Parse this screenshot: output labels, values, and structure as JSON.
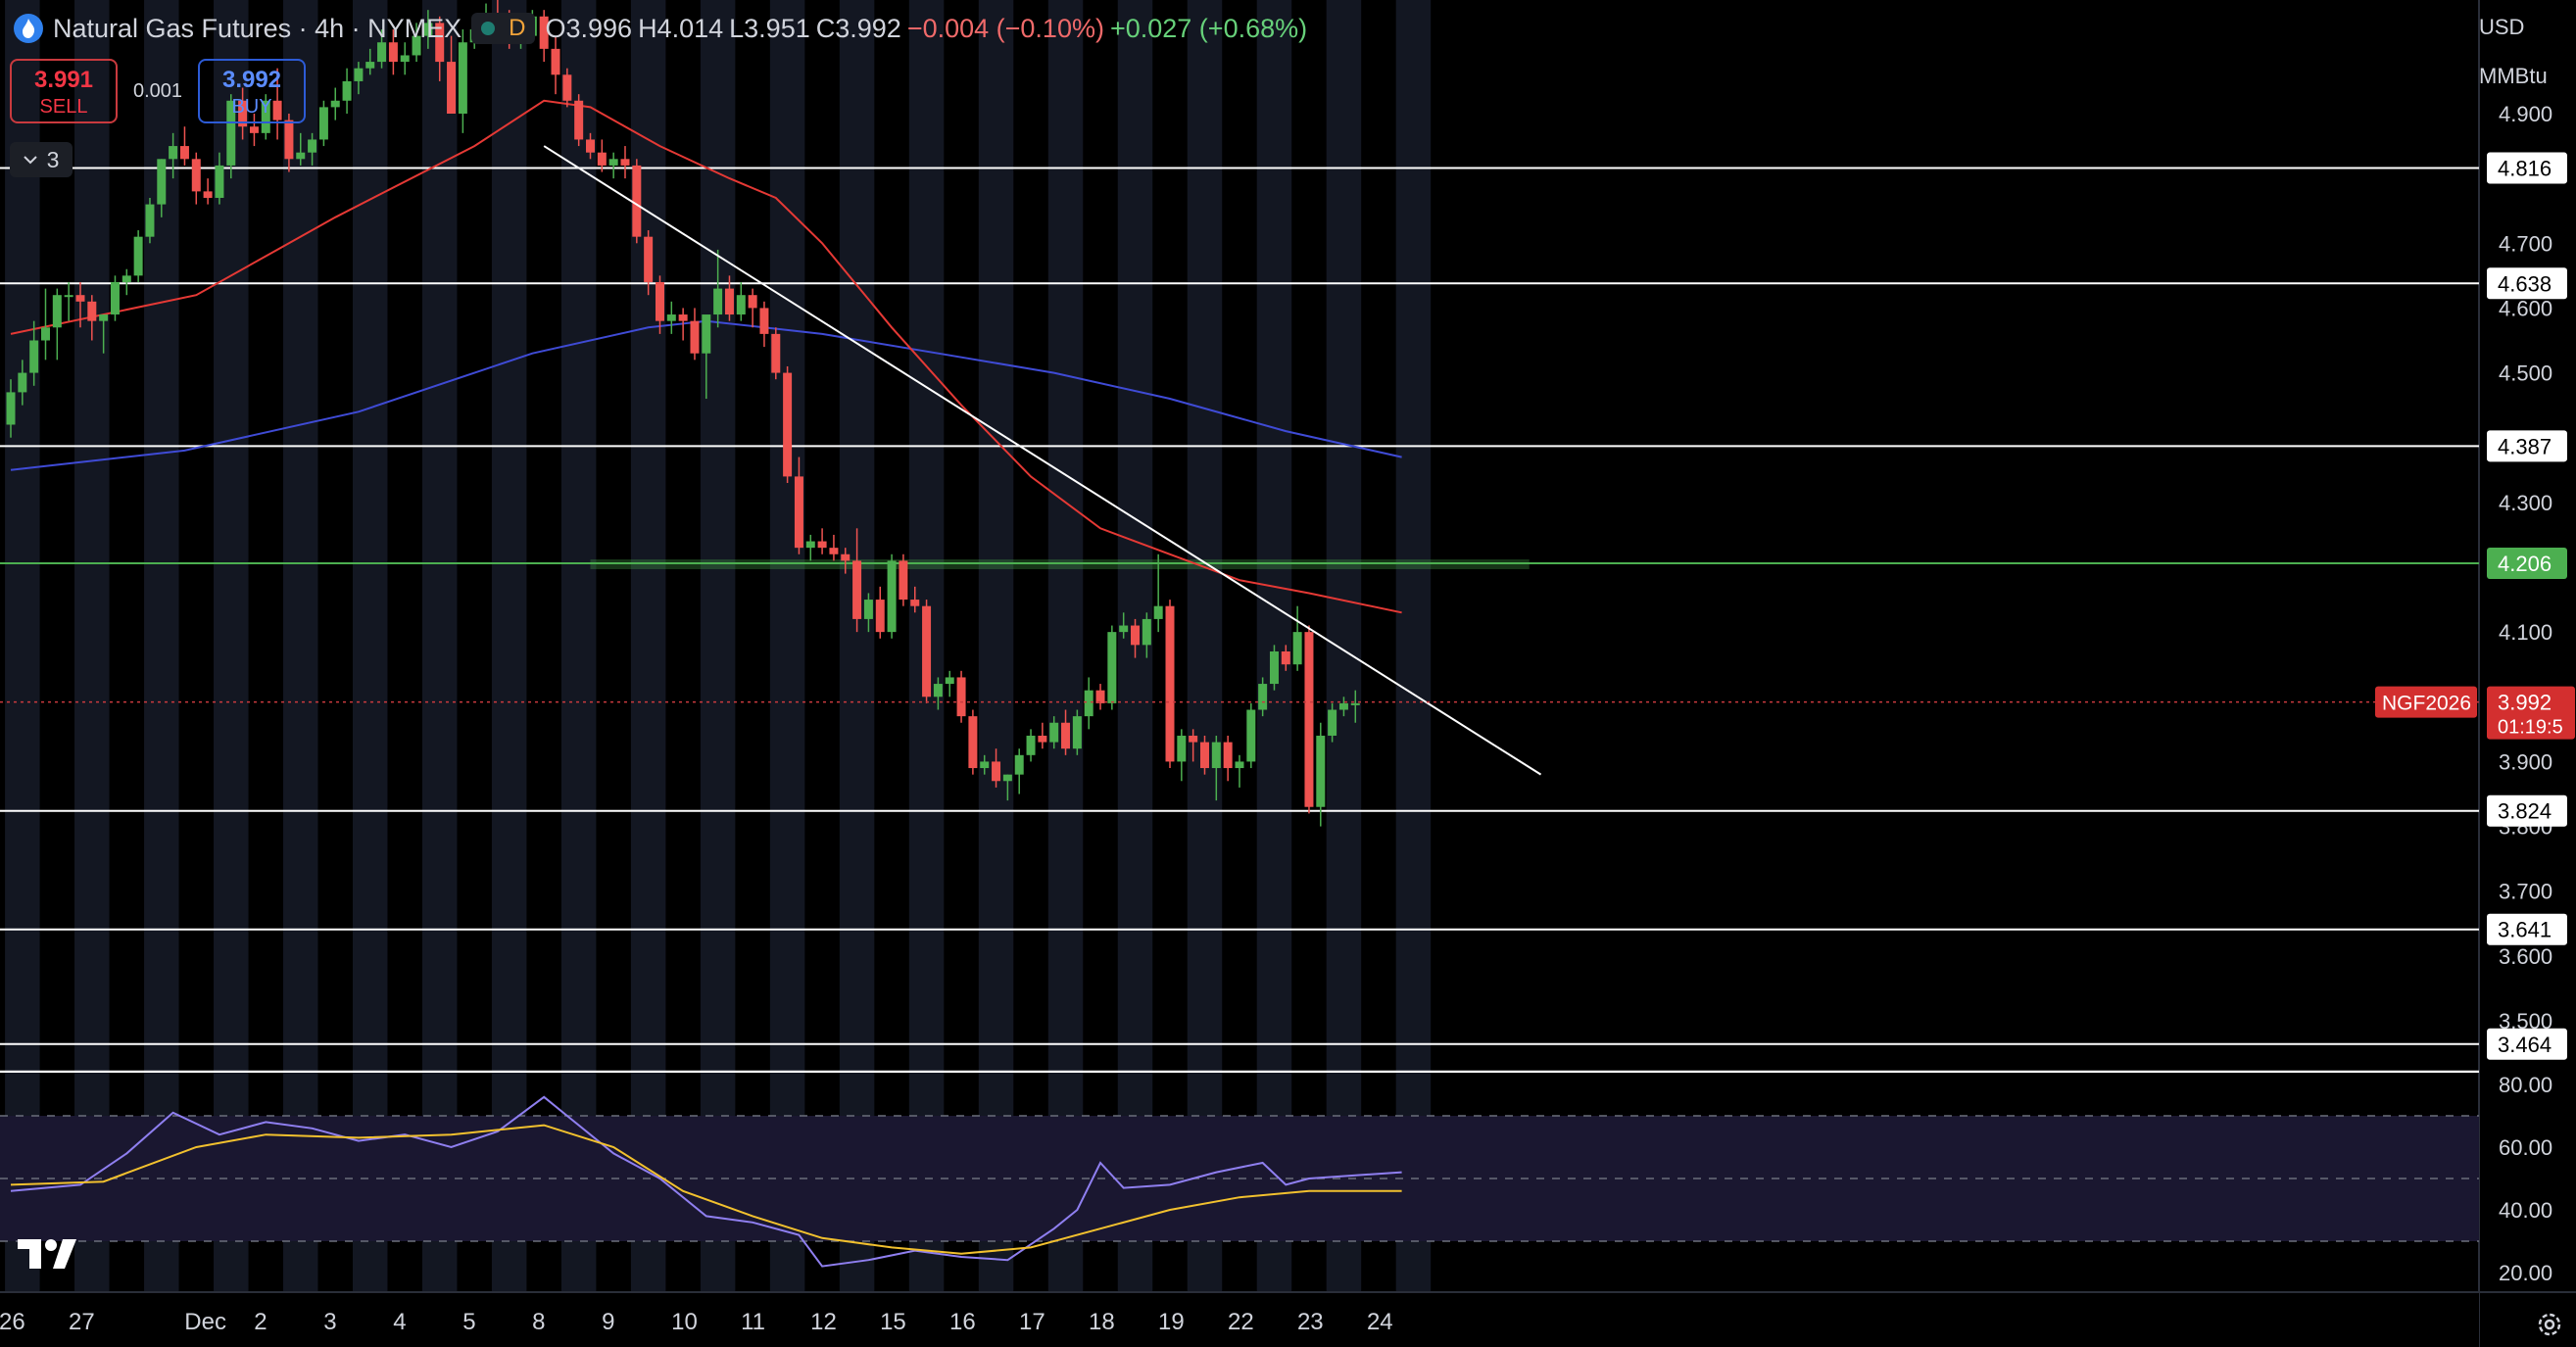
{
  "header": {
    "title": "Natural Gas Futures · 4h · NYMEX",
    "session_letter": "D",
    "open": "O3.996",
    "high": "H4.014",
    "low": "L3.951",
    "close": "C3.992",
    "change": "−0.004 (−0.10%)",
    "secondary_change": "+0.027 (+0.68%)"
  },
  "trade": {
    "sell_price": "3.991",
    "sell_label": "SELL",
    "buy_price": "3.992",
    "buy_label": "BUY",
    "spread": "0.001"
  },
  "indicator_toggle": {
    "count": "3"
  },
  "units": {
    "currency": "USD",
    "unit": "MMBtu"
  },
  "last_price": {
    "symbol": "NGF2026",
    "price": "3.992",
    "countdown": "01:19:5"
  },
  "colors": {
    "up": "#4caf50",
    "down": "#ef5350",
    "ma_fast": "#e53935",
    "ma_slow": "#3f4bd6",
    "rsi": "#8f7ff0",
    "rsi_ma": "#f2c12e",
    "support_green": "#4caf50"
  },
  "icons": [
    "natural-gas-flame-icon",
    "tradingview-logo-icon",
    "settings-gear-icon",
    "chevron-down-icon"
  ],
  "chart_data": [
    {
      "type": "candlestick",
      "price_axis": {
        "ylim": [
          3.4,
          4.95
        ],
        "ticks": [
          "4.900",
          "4.800",
          "4.700",
          "4.600",
          "4.500",
          "4.400",
          "4.300",
          "4.200",
          "4.100",
          "4.000",
          "3.900",
          "3.800",
          "3.700",
          "3.600",
          "3.500"
        ],
        "labels_visible": [
          4.9,
          4.7,
          4.6,
          4.5,
          4.3,
          4.1,
          3.9,
          3.8,
          3.7,
          3.6,
          3.5
        ]
      },
      "date_ticks": [
        {
          "i": 0,
          "label": "26"
        },
        {
          "i": 6,
          "label": "27"
        },
        {
          "i": 16,
          "label": "Dec"
        },
        {
          "i": 22,
          "label": "2"
        },
        {
          "i": 28,
          "label": "3"
        },
        {
          "i": 34,
          "label": "4"
        },
        {
          "i": 40,
          "label": "5"
        },
        {
          "i": 46,
          "label": "8"
        },
        {
          "i": 52,
          "label": "9"
        },
        {
          "i": 58,
          "label": "10"
        },
        {
          "i": 64,
          "label": "11"
        },
        {
          "i": 70,
          "label": "12"
        },
        {
          "i": 76,
          "label": "15"
        },
        {
          "i": 82,
          "label": "16"
        },
        {
          "i": 88,
          "label": "17"
        },
        {
          "i": 94,
          "label": "18"
        },
        {
          "i": 100,
          "label": "19"
        },
        {
          "i": 106,
          "label": "22"
        },
        {
          "i": 112,
          "label": "23"
        },
        {
          "i": 118,
          "label": "24"
        }
      ],
      "candles": [
        [
          4.42,
          4.49,
          4.4,
          4.47
        ],
        [
          4.47,
          4.52,
          4.45,
          4.5
        ],
        [
          4.5,
          4.58,
          4.48,
          4.55
        ],
        [
          4.55,
          4.63,
          4.52,
          4.57
        ],
        [
          4.57,
          4.63,
          4.52,
          4.62
        ],
        [
          4.62,
          4.64,
          4.58,
          4.62
        ],
        [
          4.62,
          4.64,
          4.57,
          4.61
        ],
        [
          4.61,
          4.62,
          4.55,
          4.58
        ],
        [
          4.58,
          4.59,
          4.53,
          4.59
        ],
        [
          4.59,
          4.65,
          4.58,
          4.64
        ],
        [
          4.64,
          4.66,
          4.62,
          4.65
        ],
        [
          4.65,
          4.72,
          4.64,
          4.71
        ],
        [
          4.71,
          4.77,
          4.7,
          4.76
        ],
        [
          4.76,
          4.83,
          4.74,
          4.83
        ],
        [
          4.83,
          4.87,
          4.8,
          4.85
        ],
        [
          4.85,
          4.88,
          4.82,
          4.83
        ],
        [
          4.83,
          4.84,
          4.76,
          4.78
        ],
        [
          4.78,
          4.8,
          4.76,
          4.77
        ],
        [
          4.77,
          4.84,
          4.76,
          4.82
        ],
        [
          4.82,
          4.93,
          4.8,
          4.92
        ],
        [
          4.92,
          4.94,
          4.86,
          4.88
        ],
        [
          4.88,
          4.9,
          4.85,
          4.87
        ],
        [
          4.87,
          4.93,
          4.86,
          4.92
        ],
        [
          4.92,
          4.97,
          4.86,
          4.89
        ],
        [
          4.89,
          4.9,
          4.81,
          4.83
        ],
        [
          4.83,
          4.87,
          4.82,
          4.84
        ],
        [
          4.84,
          4.87,
          4.82,
          4.86
        ],
        [
          4.86,
          4.92,
          4.85,
          4.91
        ],
        [
          4.91,
          4.94,
          4.89,
          4.92
        ],
        [
          4.92,
          4.97,
          4.9,
          4.95
        ],
        [
          4.95,
          4.98,
          4.93,
          4.97
        ],
        [
          4.97,
          5.0,
          4.96,
          4.98
        ],
        [
          4.98,
          5.03,
          4.97,
          5.01
        ],
        [
          5.01,
          5.03,
          4.96,
          4.98
        ],
        [
          4.98,
          5.01,
          4.96,
          4.99
        ],
        [
          4.99,
          5.04,
          4.98,
          5.02
        ],
        [
          5.02,
          5.06,
          5.0,
          5.04
        ],
        [
          5.04,
          5.05,
          4.95,
          4.98
        ],
        [
          4.98,
          5.02,
          4.9,
          4.9
        ],
        [
          4.9,
          5.03,
          4.87,
          5.01
        ],
        [
          5.01,
          5.05,
          5.0,
          5.03
        ],
        [
          5.03,
          5.07,
          5.01,
          5.05
        ],
        [
          5.05,
          5.08,
          5.02,
          5.04
        ],
        [
          5.04,
          5.06,
          5.0,
          5.01
        ],
        [
          5.01,
          5.04,
          5.0,
          5.02
        ],
        [
          5.02,
          5.06,
          5.01,
          5.05
        ],
        [
          5.05,
          5.06,
          4.98,
          5.0
        ],
        [
          5.0,
          5.02,
          4.93,
          4.96
        ],
        [
          4.96,
          4.97,
          4.91,
          4.92
        ],
        [
          4.92,
          4.93,
          4.85,
          4.86
        ],
        [
          4.86,
          4.87,
          4.83,
          4.84
        ],
        [
          4.84,
          4.86,
          4.81,
          4.82
        ],
        [
          4.82,
          4.84,
          4.8,
          4.83
        ],
        [
          4.83,
          4.85,
          4.8,
          4.82
        ],
        [
          4.82,
          4.83,
          4.7,
          4.71
        ],
        [
          4.71,
          4.72,
          4.62,
          4.64
        ],
        [
          4.64,
          4.65,
          4.56,
          4.58
        ],
        [
          4.58,
          4.61,
          4.56,
          4.59
        ],
        [
          4.59,
          4.6,
          4.55,
          4.58
        ],
        [
          4.58,
          4.6,
          4.52,
          4.53
        ],
        [
          4.53,
          4.58,
          4.46,
          4.59
        ],
        [
          4.59,
          4.69,
          4.57,
          4.63
        ],
        [
          4.63,
          4.65,
          4.58,
          4.59
        ],
        [
          4.59,
          4.64,
          4.58,
          4.62
        ],
        [
          4.62,
          4.63,
          4.57,
          4.6
        ],
        [
          4.6,
          4.61,
          4.54,
          4.56
        ],
        [
          4.56,
          4.57,
          4.49,
          4.5
        ],
        [
          4.5,
          4.51,
          4.33,
          4.34
        ],
        [
          4.34,
          4.37,
          4.22,
          4.23
        ],
        [
          4.23,
          4.25,
          4.21,
          4.24
        ],
        [
          4.24,
          4.26,
          4.22,
          4.23
        ],
        [
          4.23,
          4.25,
          4.21,
          4.22
        ],
        [
          4.22,
          4.23,
          4.19,
          4.21
        ],
        [
          4.21,
          4.26,
          4.1,
          4.12
        ],
        [
          4.12,
          4.16,
          4.1,
          4.15
        ],
        [
          4.15,
          4.17,
          4.09,
          4.1
        ],
        [
          4.1,
          4.22,
          4.09,
          4.21
        ],
        [
          4.21,
          4.22,
          4.14,
          4.15
        ],
        [
          4.15,
          4.17,
          4.13,
          4.14
        ],
        [
          4.14,
          4.15,
          3.99,
          4.0
        ],
        [
          4.0,
          4.03,
          3.98,
          4.02
        ],
        [
          4.02,
          4.04,
          4.0,
          4.03
        ],
        [
          4.03,
          4.04,
          3.96,
          3.97
        ],
        [
          3.97,
          3.98,
          3.88,
          3.89
        ],
        [
          3.89,
          3.91,
          3.88,
          3.9
        ],
        [
          3.9,
          3.92,
          3.86,
          3.87
        ],
        [
          3.87,
          3.88,
          3.84,
          3.88
        ],
        [
          3.88,
          3.92,
          3.85,
          3.91
        ],
        [
          3.91,
          3.95,
          3.9,
          3.94
        ],
        [
          3.94,
          3.96,
          3.92,
          3.93
        ],
        [
          3.93,
          3.97,
          3.92,
          3.96
        ],
        [
          3.96,
          3.98,
          3.91,
          3.92
        ],
        [
          3.92,
          3.98,
          3.91,
          3.97
        ],
        [
          3.97,
          4.03,
          3.95,
          4.01
        ],
        [
          4.01,
          4.02,
          3.98,
          3.99
        ],
        [
          3.99,
          4.11,
          3.98,
          4.1
        ],
        [
          4.1,
          4.13,
          4.09,
          4.11
        ],
        [
          4.11,
          4.12,
          4.06,
          4.08
        ],
        [
          4.08,
          4.13,
          4.06,
          4.12
        ],
        [
          4.12,
          4.22,
          4.1,
          4.14
        ],
        [
          4.14,
          4.15,
          3.89,
          3.9
        ],
        [
          3.9,
          3.95,
          3.87,
          3.94
        ],
        [
          3.94,
          3.95,
          3.9,
          3.93
        ],
        [
          3.93,
          3.94,
          3.88,
          3.89
        ],
        [
          3.89,
          3.94,
          3.84,
          3.93
        ],
        [
          3.93,
          3.94,
          3.87,
          3.89
        ],
        [
          3.89,
          3.91,
          3.86,
          3.9
        ],
        [
          3.9,
          3.99,
          3.89,
          3.98
        ],
        [
          3.98,
          4.03,
          3.97,
          4.02
        ],
        [
          4.02,
          4.08,
          4.01,
          4.07
        ],
        [
          4.07,
          4.08,
          4.04,
          4.05
        ],
        [
          4.05,
          4.14,
          4.04,
          4.1
        ],
        [
          4.1,
          4.11,
          3.82,
          3.83
        ],
        [
          3.83,
          3.96,
          3.8,
          3.94
        ],
        [
          3.94,
          3.99,
          3.93,
          3.98
        ],
        [
          3.98,
          4.0,
          3.97,
          3.99
        ],
        [
          3.99,
          4.01,
          3.96,
          3.99
        ]
      ],
      "sma_fast": [
        [
          0,
          4.56
        ],
        [
          16,
          4.62
        ],
        [
          28,
          4.74
        ],
        [
          40,
          4.85
        ],
        [
          46,
          4.92
        ],
        [
          50,
          4.91
        ],
        [
          56,
          4.85
        ],
        [
          62,
          4.8
        ],
        [
          66,
          4.77
        ],
        [
          70,
          4.7
        ],
        [
          76,
          4.57
        ],
        [
          82,
          4.45
        ],
        [
          88,
          4.34
        ],
        [
          94,
          4.26
        ],
        [
          100,
          4.22
        ],
        [
          106,
          4.18
        ],
        [
          112,
          4.16
        ],
        [
          120,
          4.13
        ]
      ],
      "sma_slow": [
        [
          0,
          4.35
        ],
        [
          15,
          4.38
        ],
        [
          30,
          4.44
        ],
        [
          45,
          4.53
        ],
        [
          55,
          4.57
        ],
        [
          60,
          4.58
        ],
        [
          70,
          4.56
        ],
        [
          80,
          4.53
        ],
        [
          90,
          4.5
        ],
        [
          100,
          4.46
        ],
        [
          110,
          4.41
        ],
        [
          120,
          4.37
        ]
      ],
      "trendline": {
        "from": [
          46,
          4.85
        ],
        "to": [
          132,
          3.88
        ]
      },
      "horizontal_levels": [
        4.816,
        4.638,
        4.387,
        4.206,
        3.824,
        3.641,
        3.464
      ],
      "support_zone": {
        "from_index": 50,
        "to_index": 131,
        "value": 4.206
      },
      "last_close": 3.992
    },
    {
      "type": "line",
      "name": "RSI",
      "ylim": [
        14,
        84
      ],
      "ticks": [
        "80.00",
        "60.00",
        "40.00",
        "20.00"
      ],
      "band": [
        30,
        70
      ],
      "midline": 50,
      "rsi": [
        [
          0,
          46
        ],
        [
          6,
          48
        ],
        [
          10,
          58
        ],
        [
          14,
          71
        ],
        [
          18,
          64
        ],
        [
          22,
          68
        ],
        [
          26,
          66
        ],
        [
          30,
          62
        ],
        [
          34,
          64
        ],
        [
          38,
          60
        ],
        [
          42,
          65
        ],
        [
          46,
          76
        ],
        [
          48,
          70
        ],
        [
          52,
          58
        ],
        [
          56,
          50
        ],
        [
          60,
          38
        ],
        [
          64,
          36
        ],
        [
          68,
          32
        ],
        [
          70,
          22
        ],
        [
          74,
          24
        ],
        [
          78,
          27
        ],
        [
          82,
          25
        ],
        [
          86,
          24
        ],
        [
          90,
          34
        ],
        [
          92,
          40
        ],
        [
          94,
          55
        ],
        [
          96,
          47
        ],
        [
          100,
          48
        ],
        [
          104,
          52
        ],
        [
          108,
          55
        ],
        [
          110,
          48
        ],
        [
          112,
          50
        ],
        [
          120,
          52
        ]
      ],
      "rsi_ma": [
        [
          0,
          48
        ],
        [
          8,
          49
        ],
        [
          16,
          60
        ],
        [
          22,
          64
        ],
        [
          30,
          63
        ],
        [
          38,
          64
        ],
        [
          46,
          67
        ],
        [
          52,
          60
        ],
        [
          58,
          46
        ],
        [
          64,
          38
        ],
        [
          70,
          31
        ],
        [
          76,
          28
        ],
        [
          82,
          26
        ],
        [
          88,
          28
        ],
        [
          94,
          34
        ],
        [
          100,
          40
        ],
        [
          106,
          44
        ],
        [
          112,
          46
        ],
        [
          120,
          46
        ]
      ]
    }
  ]
}
